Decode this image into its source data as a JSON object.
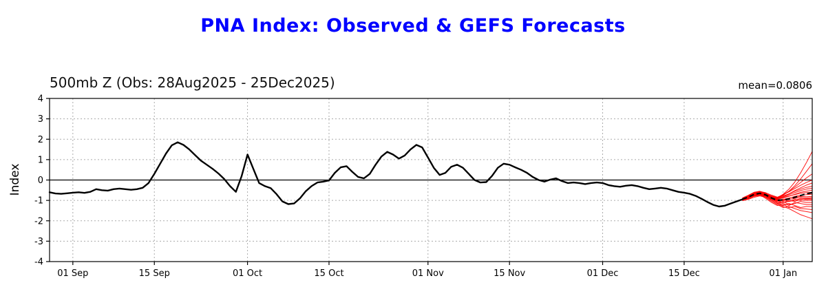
{
  "title": "PNA Index: Observed & GEFS Forecasts",
  "subtitle": "500mb Z (Obs: 28Aug2025 - 25Dec2025)",
  "mean_label": "mean=0.0806",
  "ylabel": "Index",
  "colors": {
    "title": "#0000ff",
    "observed": "#000000",
    "forecast": "#ff0000",
    "ensemble_mean": "#000000",
    "grid": "#aaaaaa"
  },
  "chart_data": {
    "type": "line",
    "title": "PNA Index: Observed & GEFS Forecasts",
    "subtitle": "500mb Z (Obs: 28Aug2025 - 25Dec2025)",
    "mean_annotation": "mean=0.0806",
    "xlabel": "",
    "ylabel": "Index",
    "ylim": [
      -4,
      4
    ],
    "yticks": [
      -4,
      -3,
      -2,
      -1,
      0,
      1,
      2,
      3,
      4
    ],
    "xlim_days": [
      0,
      131
    ],
    "grid": true,
    "legend": "none",
    "xticks": [
      {
        "label": "01 Sep",
        "day": 4
      },
      {
        "label": "15 Sep",
        "day": 18
      },
      {
        "label": "01 Oct",
        "day": 34
      },
      {
        "label": "15 Oct",
        "day": 48
      },
      {
        "label": "01 Nov",
        "day": 65
      },
      {
        "label": "15 Nov",
        "day": 79
      },
      {
        "label": "01 Dec",
        "day": 95
      },
      {
        "label": "15 Dec",
        "day": 109
      },
      {
        "label": "01 Jan",
        "day": 126
      }
    ],
    "observed": {
      "name": "Observed (28Aug2025 - 25Dec2025)",
      "start_day": 0,
      "values": [
        -0.6,
        -0.66,
        -0.68,
        -0.65,
        -0.62,
        -0.6,
        -0.63,
        -0.58,
        -0.45,
        -0.5,
        -0.52,
        -0.45,
        -0.42,
        -0.45,
        -0.48,
        -0.45,
        -0.38,
        -0.15,
        0.3,
        0.8,
        1.3,
        1.7,
        1.85,
        1.72,
        1.5,
        1.22,
        0.95,
        0.75,
        0.55,
        0.32,
        0.05,
        -0.3,
        -0.58,
        0.2,
        1.25,
        0.55,
        -0.15,
        -0.3,
        -0.4,
        -0.7,
        -1.05,
        -1.18,
        -1.15,
        -0.9,
        -0.55,
        -0.3,
        -0.12,
        -0.08,
        -0.02,
        0.35,
        0.62,
        0.68,
        0.4,
        0.15,
        0.08,
        0.3,
        0.75,
        1.15,
        1.38,
        1.25,
        1.05,
        1.2,
        1.5,
        1.72,
        1.6,
        1.1,
        0.6,
        0.25,
        0.35,
        0.65,
        0.75,
        0.6,
        0.3,
        0.0,
        -0.12,
        -0.1,
        0.2,
        0.6,
        0.8,
        0.75,
        0.62,
        0.5,
        0.35,
        0.15,
        0.0,
        -0.08,
        0.02,
        0.08,
        -0.05,
        -0.15,
        -0.12,
        -0.15,
        -0.2,
        -0.15,
        -0.12,
        -0.15,
        -0.25,
        -0.3,
        -0.33,
        -0.28,
        -0.25,
        -0.3,
        -0.38,
        -0.45,
        -0.42,
        -0.38,
        -0.42,
        -0.5,
        -0.58,
        -0.62,
        -0.68,
        -0.78,
        -0.92,
        -1.08,
        -1.22,
        -1.3,
        -1.26,
        -1.15,
        -1.05,
        -0.95
      ]
    },
    "forecast": {
      "name": "GEFS ensemble members",
      "start_day": 119,
      "members": [
        [
          -0.95,
          -0.85,
          -0.7,
          -0.65,
          -0.8,
          -1.0,
          -1.15,
          -1.3,
          -1.4,
          -1.55,
          -1.7,
          -1.8,
          -1.9
        ],
        [
          -1.0,
          -0.9,
          -0.75,
          -0.7,
          -0.85,
          -1.05,
          -1.2,
          -1.35,
          -1.3,
          -1.4,
          -1.5,
          -1.55,
          -1.6
        ],
        [
          -0.9,
          -0.8,
          -0.68,
          -0.72,
          -0.9,
          -1.1,
          -1.25,
          -1.2,
          -1.35,
          -1.3,
          -1.4,
          -1.42,
          -1.45
        ],
        [
          -0.98,
          -0.92,
          -0.8,
          -0.75,
          -0.7,
          -0.9,
          -1.1,
          -1.25,
          -1.15,
          -1.25,
          -1.35,
          -1.3,
          -1.3
        ],
        [
          -0.92,
          -0.78,
          -0.62,
          -0.6,
          -0.75,
          -0.95,
          -1.1,
          -1.15,
          -1.25,
          -1.1,
          -1.15,
          -1.2,
          -1.2
        ],
        [
          -0.95,
          -0.85,
          -0.72,
          -0.68,
          -0.8,
          -1.0,
          -1.15,
          -1.05,
          -1.2,
          -1.15,
          -1.05,
          -1.1,
          -1.1
        ],
        [
          -1.02,
          -0.95,
          -0.85,
          -0.78,
          -0.85,
          -0.95,
          -1.05,
          -1.1,
          -1.0,
          -1.05,
          -0.95,
          -1.0,
          -1.0
        ],
        [
          -0.88,
          -0.75,
          -0.6,
          -0.55,
          -0.65,
          -0.85,
          -1.0,
          -1.1,
          -1.05,
          -0.95,
          -1.0,
          -0.95,
          -0.95
        ],
        [
          -0.95,
          -0.88,
          -0.78,
          -0.72,
          -0.78,
          -0.9,
          -1.0,
          -0.95,
          -1.05,
          -1.0,
          -0.9,
          -0.92,
          -0.9
        ],
        [
          -0.9,
          -0.82,
          -0.7,
          -0.65,
          -0.72,
          -0.88,
          -0.98,
          -1.02,
          -0.95,
          -0.9,
          -0.85,
          -0.88,
          -0.85
        ],
        [
          -0.97,
          -0.9,
          -0.8,
          -0.74,
          -0.8,
          -0.92,
          -1.02,
          -0.96,
          -0.88,
          -0.84,
          -0.8,
          -0.82,
          -0.8
        ],
        [
          -0.93,
          -0.84,
          -0.7,
          -0.62,
          -0.7,
          -0.85,
          -0.95,
          -1.0,
          -0.9,
          -0.8,
          -0.75,
          -0.72,
          -0.7
        ],
        [
          -0.9,
          -0.8,
          -0.66,
          -0.58,
          -0.66,
          -0.8,
          -0.92,
          -0.85,
          -0.78,
          -0.72,
          -0.65,
          -0.62,
          -0.6
        ],
        [
          -0.96,
          -0.88,
          -0.75,
          -0.68,
          -0.74,
          -0.86,
          -0.95,
          -0.88,
          -0.8,
          -0.7,
          -0.6,
          -0.55,
          -0.5
        ],
        [
          -0.92,
          -0.82,
          -0.68,
          -0.6,
          -0.68,
          -0.82,
          -0.9,
          -0.82,
          -0.72,
          -0.62,
          -0.52,
          -0.45,
          -0.4
        ],
        [
          -0.94,
          -0.85,
          -0.72,
          -0.64,
          -0.7,
          -0.8,
          -0.88,
          -0.78,
          -0.68,
          -0.55,
          -0.45,
          -0.36,
          -0.3
        ],
        [
          -0.98,
          -0.9,
          -0.78,
          -0.7,
          -0.75,
          -0.85,
          -0.92,
          -0.82,
          -0.68,
          -0.52,
          -0.38,
          -0.25,
          -0.15
        ],
        [
          -0.9,
          -0.78,
          -0.64,
          -0.56,
          -0.62,
          -0.74,
          -0.84,
          -0.72,
          -0.58,
          -0.42,
          -0.26,
          -0.12,
          0.0
        ],
        [
          -0.93,
          -0.82,
          -0.68,
          -0.6,
          -0.66,
          -0.78,
          -0.86,
          -0.72,
          -0.55,
          -0.35,
          -0.12,
          0.1,
          0.3
        ],
        [
          -0.95,
          -0.85,
          -0.7,
          -0.62,
          -0.7,
          -0.82,
          -0.9,
          -0.75,
          -0.55,
          -0.28,
          0.05,
          0.42,
          0.8
        ],
        [
          -0.92,
          -0.8,
          -0.66,
          -0.58,
          -0.66,
          -0.8,
          -0.88,
          -0.7,
          -0.45,
          -0.1,
          0.35,
          0.85,
          1.4
        ]
      ]
    },
    "ensemble_mean": {
      "name": "GEFS ensemble mean",
      "style": "dashed",
      "start_day": 119,
      "values": [
        -0.94,
        -0.84,
        -0.71,
        -0.65,
        -0.73,
        -0.88,
        -1.0,
        -0.97,
        -0.93,
        -0.85,
        -0.76,
        -0.68,
        -0.62
      ]
    }
  }
}
